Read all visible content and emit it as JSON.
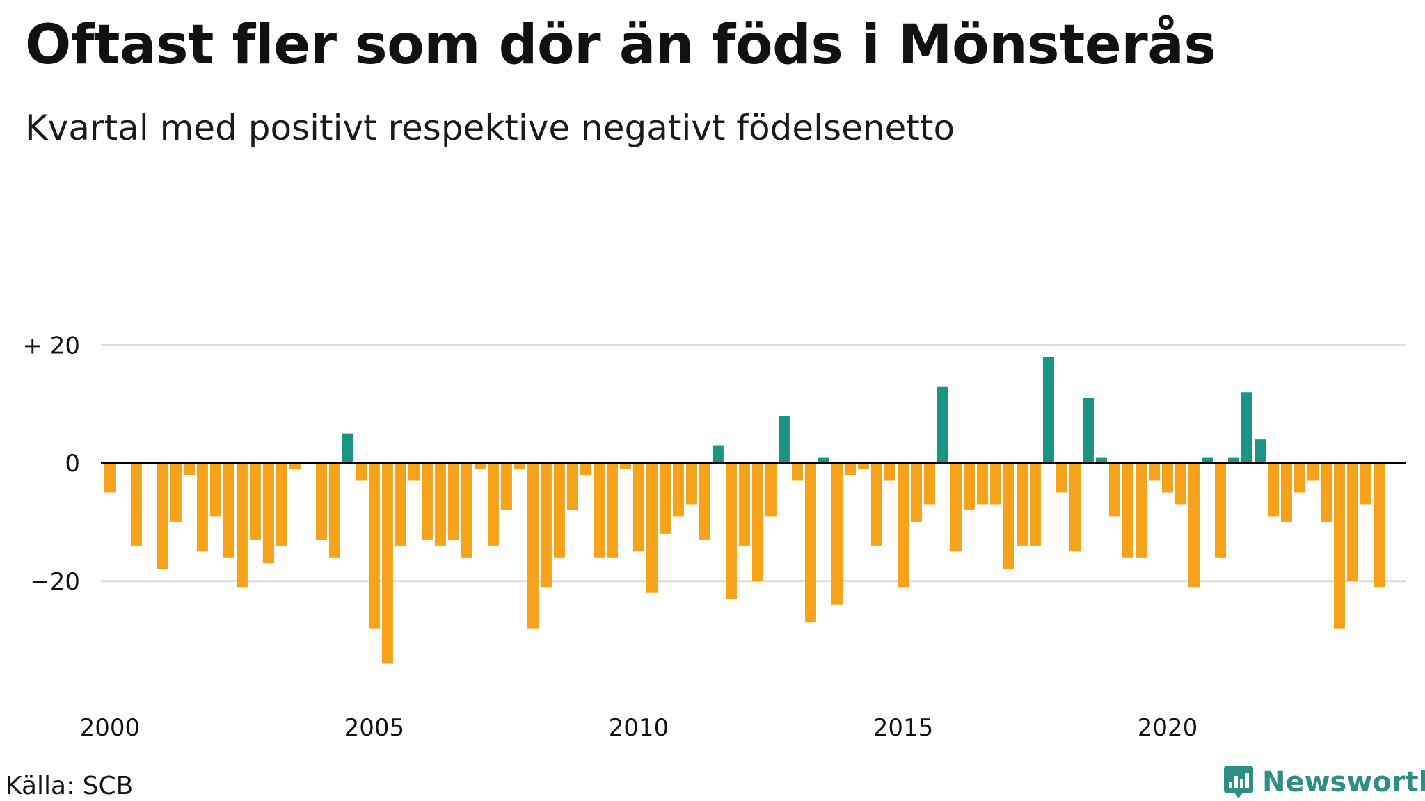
{
  "title": "Oftast fler som dör än föds i Mönsterås",
  "subtitle": "Kvartal med positivt respektive negativt födelsenetto",
  "source": "Källa: SCB",
  "brand": {
    "name": "Newsworthy",
    "icon": "newsworthy-logo-icon"
  },
  "colors": {
    "positive": "#1a9485",
    "negative": "#f7a21b",
    "grid": "#dddddd",
    "zero": "#000000",
    "brand": "#2f8e83"
  },
  "chart_data": {
    "type": "bar",
    "title": "Oftast fler som dör än föds i Mönsterås",
    "subtitle": "Kvartal med positivt respektive negativt födelsenetto",
    "xlabel": "",
    "ylabel": "",
    "x_start": 2000.0,
    "x_step": 0.25,
    "xlim": [
      1999.83,
      2024.5
    ],
    "ylim": [
      -37,
      29
    ],
    "yticks": [
      {
        "value": 20,
        "label": "+ 20"
      },
      {
        "value": 0,
        "label": "0"
      },
      {
        "value": -20,
        "label": "−20"
      }
    ],
    "xticks": [
      {
        "value": 2000,
        "label": "2000"
      },
      {
        "value": 2005,
        "label": "2005"
      },
      {
        "value": 2010,
        "label": "2010"
      },
      {
        "value": 2015,
        "label": "2015"
      },
      {
        "value": 2020,
        "label": "2020"
      }
    ],
    "grid": true,
    "legend": "none",
    "values": [
      -5,
      0,
      -14,
      0,
      -18,
      -10,
      -2,
      -15,
      -9,
      -16,
      -21,
      -13,
      -17,
      -14,
      -1,
      0,
      -13,
      -16,
      5,
      -3,
      -28,
      -34,
      -14,
      -3,
      -13,
      -14,
      -13,
      -16,
      -1,
      -14,
      -8,
      -1,
      -28,
      -21,
      -16,
      -8,
      -2,
      -16,
      -16,
      -1,
      -15,
      -22,
      -12,
      -9,
      -7,
      -13,
      3,
      -23,
      -14,
      -20,
      -9,
      8,
      -3,
      -27,
      1,
      -24,
      -2,
      -1,
      -14,
      -3,
      -21,
      -10,
      -7,
      13,
      -15,
      -8,
      -7,
      -7,
      -18,
      -14,
      -14,
      18,
      -5,
      -15,
      11,
      1,
      -9,
      -16,
      -16,
      -3,
      -5,
      -7,
      -21,
      1,
      -16,
      1,
      12,
      4,
      -9,
      -10,
      -5,
      -3,
      -10,
      -28,
      -20,
      -7,
      -21
    ]
  }
}
